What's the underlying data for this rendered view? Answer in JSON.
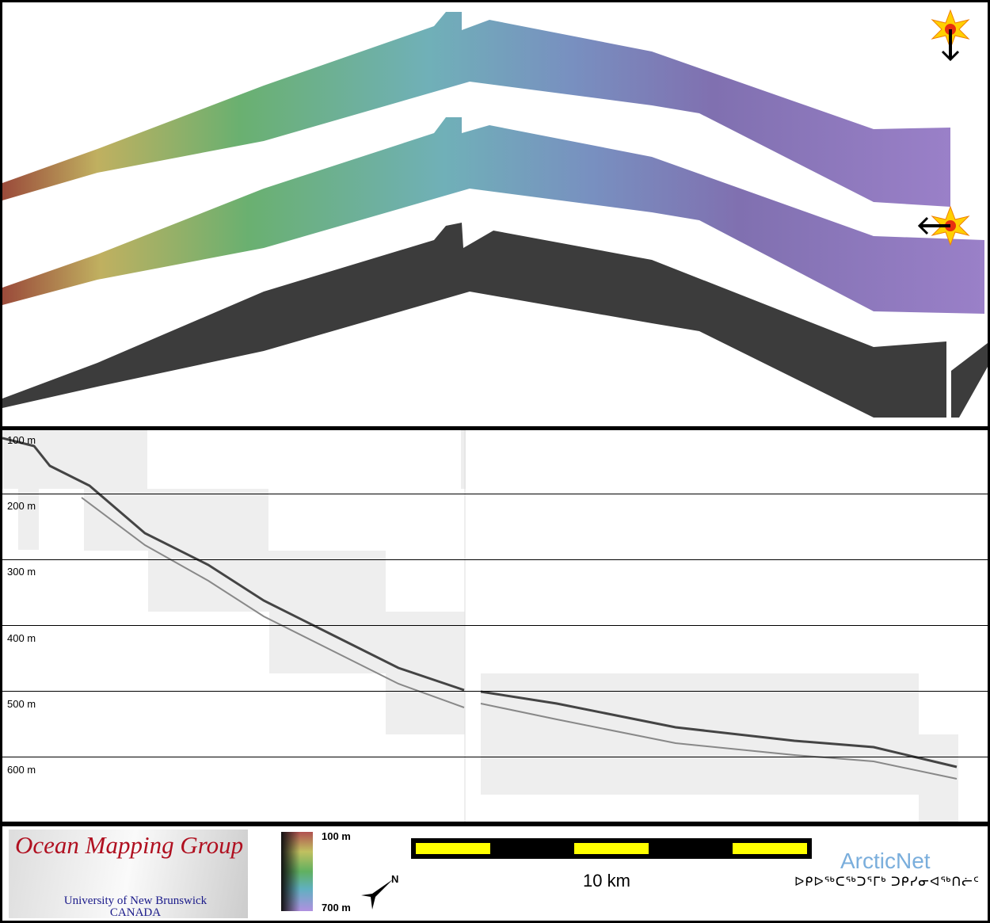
{
  "depth_labels": [
    "100 m",
    "200 m",
    "300 m",
    "400 m",
    "500 m",
    "600 m"
  ],
  "logo": {
    "title": "Ocean Mapping Group",
    "line1": "University of New Brunswick",
    "line2": "CANADA"
  },
  "colorbar": {
    "top": "100 m",
    "bottom": "700 m"
  },
  "north": "N",
  "scale": "10 km",
  "arcticnet": {
    "name": "ArcticNet",
    "syllabics": "ᐅᑭᐅᖅᑕᖅᑐᕐᒥᒃ ᑐᑭᓯᓂᐊᖅᑎᓖᑦ"
  },
  "colors": {
    "scale_bar": "#ffff00",
    "logo_title": "#b01020",
    "arcticnet": "#7aaedc"
  }
}
